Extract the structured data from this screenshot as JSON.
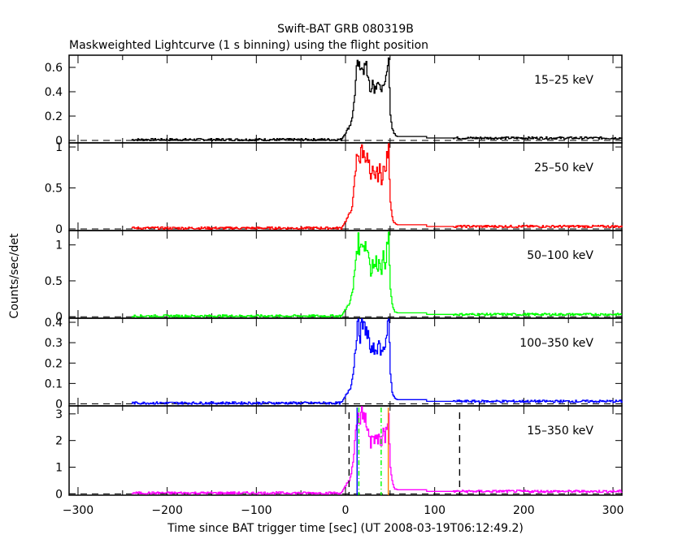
{
  "chart_data": {
    "type": "line",
    "title": "Swift-BAT GRB 080319B",
    "subtitle": "Maskweighted Lightcurve (1 s binning) using the flight position",
    "xlabel": "Time since BAT trigger time [sec] (UT 2008-03-19T06:12:49.2)",
    "ylabel": "Counts/sec/det",
    "xlim": [
      -310,
      310
    ],
    "x_ticks": [
      -300,
      -200,
      -100,
      0,
      100,
      200,
      300
    ],
    "x_tick_labels": [
      "−300",
      "−200",
      "−100",
      "0",
      "100",
      "200",
      "300"
    ],
    "grid": false,
    "data_start": -240,
    "burst_profile": {
      "x": [
        -240,
        -5,
        0,
        5,
        8,
        10,
        12,
        14,
        16,
        18,
        20,
        22,
        24,
        26,
        28,
        30,
        32,
        34,
        36,
        38,
        40,
        42,
        44,
        46,
        48,
        50,
        52,
        54,
        56,
        58,
        60,
        65,
        90,
        91,
        120,
        310
      ],
      "shape": [
        0.01,
        0.01,
        0.1,
        0.2,
        0.35,
        0.6,
        0.85,
        0.95,
        0.82,
        1.0,
        0.9,
        0.92,
        0.85,
        0.78,
        0.55,
        0.7,
        0.62,
        0.7,
        0.65,
        0.72,
        0.6,
        0.75,
        0.68,
        0.85,
        1.0,
        0.35,
        0.15,
        0.08,
        0.06,
        0.05,
        0.05,
        0.05,
        0.05,
        0.03,
        0.03,
        0.03
      ]
    },
    "panels": [
      {
        "label": "15–25 keV",
        "color": "#000000",
        "ylim": [
          -0.02,
          0.7
        ],
        "y_ticks": [
          0,
          0.2,
          0.4,
          0.6
        ],
        "y_tick_labels": [
          "0",
          "0.2",
          "0.4",
          "0.6"
        ],
        "peak": 0.66
      },
      {
        "label": "25–50 keV",
        "color": "#ff0000",
        "ylim": [
          -0.02,
          1.05
        ],
        "y_ticks": [
          0,
          0.5,
          1
        ],
        "y_tick_labels": [
          "0",
          "0.5",
          "1"
        ],
        "peak": 1.0
      },
      {
        "label": "50–100 keV",
        "color": "#00ff00",
        "ylim": [
          -0.02,
          1.2
        ],
        "y_ticks": [
          0,
          0.5,
          1
        ],
        "y_tick_labels": [
          "0",
          "0.5",
          "1"
        ],
        "peak": 1.1
      },
      {
        "label": "100–350 keV",
        "color": "#0000ff",
        "ylim": [
          -0.01,
          0.42
        ],
        "y_ticks": [
          0,
          0.1,
          0.2,
          0.3,
          0.4
        ],
        "y_tick_labels": [
          "0",
          "0.1",
          "0.2",
          "0.3",
          "0.4"
        ],
        "peak": 0.41
      },
      {
        "label": "15–350 keV",
        "color": "#ff00ff",
        "ylim": [
          -0.05,
          3.3
        ],
        "y_ticks": [
          0,
          1,
          2,
          3
        ],
        "y_tick_labels": [
          "0",
          "1",
          "2",
          "3"
        ],
        "peak": 3.1
      }
    ],
    "markers": [
      {
        "name": "t-start-dashed",
        "x": 4,
        "color": "#000000",
        "style": "dashed"
      },
      {
        "name": "t-end-dashed",
        "x": 128,
        "color": "#000000",
        "style": "dashed"
      },
      {
        "name": "t-peak-blue",
        "x": 13,
        "color": "#0000ff",
        "style": "solid"
      },
      {
        "name": "t50-start-green",
        "x": 15,
        "color": "#00ff00",
        "style": "dashdot"
      },
      {
        "name": "t50-end-green",
        "x": 40,
        "color": "#00ff00",
        "style": "dashdot"
      },
      {
        "name": "t-orange",
        "x": 48,
        "color": "#ff8000",
        "style": "solid"
      }
    ]
  }
}
